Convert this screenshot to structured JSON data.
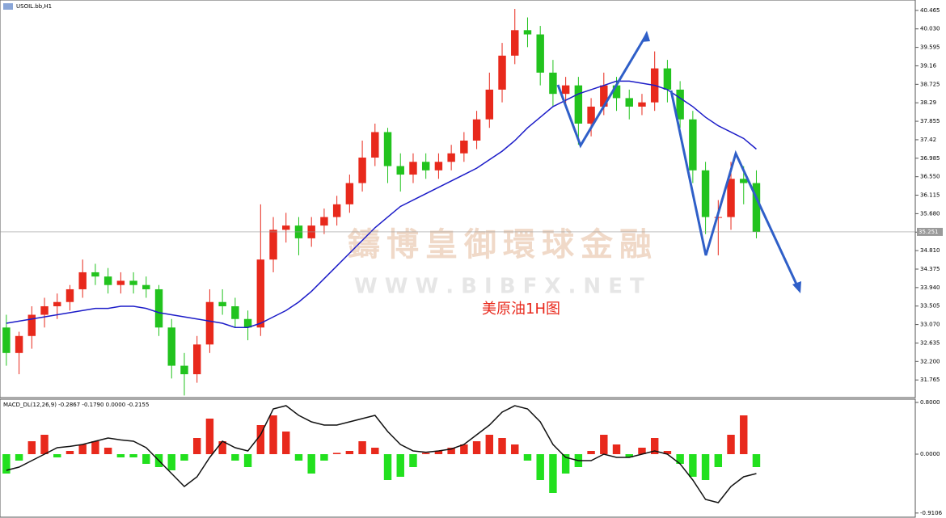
{
  "chart_data": [
    {
      "type": "candlestick",
      "title": "USOIL.bb,H1",
      "annotations": [
        "鑄博皇御環球金融",
        "W W W . B I B F X . N E T",
        "美原油1H图"
      ],
      "up_color": "#e8291c",
      "down_color": "#22c31e",
      "open": [
        33.0,
        32.4,
        32.8,
        33.3,
        33.5,
        33.6,
        33.9,
        34.3,
        34.2,
        34.0,
        34.1,
        34.0,
        33.9,
        33.0,
        32.1,
        31.9,
        32.6,
        33.6,
        33.5,
        33.2,
        33.0,
        34.6,
        35.3,
        35.4,
        35.1,
        35.4,
        35.6,
        35.9,
        36.4,
        37.0,
        37.6,
        36.8,
        36.6,
        36.9,
        36.7,
        36.9,
        37.1,
        37.4,
        37.9,
        38.6,
        39.4,
        40.0,
        39.9,
        39.0,
        38.5,
        38.7,
        37.8,
        38.2,
        38.7,
        38.4,
        38.2,
        38.3,
        39.1,
        38.6,
        37.9,
        36.7,
        35.6,
        35.6,
        36.5,
        36.4
      ],
      "high": [
        33.3,
        32.9,
        33.5,
        33.7,
        33.8,
        34.0,
        34.6,
        34.5,
        34.4,
        34.3,
        34.3,
        34.2,
        34.0,
        33.2,
        32.4,
        32.8,
        33.9,
        33.9,
        33.7,
        33.4,
        35.9,
        35.6,
        35.7,
        35.6,
        35.6,
        35.8,
        36.1,
        36.6,
        37.4,
        37.8,
        37.7,
        37.1,
        37.1,
        37.1,
        37.1,
        37.3,
        37.6,
        38.1,
        39.0,
        39.7,
        40.5,
        40.3,
        40.1,
        39.3,
        38.9,
        38.9,
        38.4,
        39.0,
        38.9,
        38.6,
        38.5,
        39.5,
        39.3,
        38.8,
        38.1,
        36.9,
        36.0,
        36.9,
        36.8,
        36.7
      ],
      "low": [
        32.1,
        31.9,
        32.5,
        33.0,
        33.2,
        33.4,
        33.7,
        34.0,
        33.8,
        33.8,
        33.8,
        33.7,
        32.8,
        31.8,
        31.4,
        31.7,
        32.4,
        33.3,
        33.0,
        32.7,
        32.8,
        34.3,
        35.0,
        34.7,
        34.9,
        35.2,
        35.4,
        35.7,
        36.2,
        36.8,
        36.4,
        36.2,
        36.4,
        36.5,
        36.5,
        36.7,
        36.9,
        37.2,
        37.7,
        38.3,
        39.2,
        39.6,
        38.7,
        38.2,
        38.2,
        37.3,
        37.5,
        38.0,
        38.1,
        37.9,
        38.0,
        38.1,
        38.3,
        37.7,
        36.4,
        35.2,
        34.7,
        35.3,
        35.9,
        35.1
      ],
      "close": [
        32.4,
        32.8,
        33.3,
        33.5,
        33.6,
        33.9,
        34.3,
        34.2,
        34.0,
        34.1,
        34.0,
        33.9,
        33.0,
        32.1,
        31.9,
        32.6,
        33.6,
        33.5,
        33.2,
        33.0,
        34.6,
        35.3,
        35.4,
        35.1,
        35.4,
        35.6,
        35.9,
        36.4,
        37.0,
        37.6,
        36.8,
        36.6,
        36.9,
        36.7,
        36.9,
        37.1,
        37.4,
        37.9,
        38.6,
        39.4,
        40.0,
        39.9,
        39.0,
        38.5,
        38.7,
        37.8,
        38.2,
        38.7,
        38.4,
        38.2,
        38.3,
        39.1,
        38.6,
        37.9,
        36.7,
        35.6,
        35.6,
        36.5,
        36.4,
        35.25
      ],
      "series": [
        {
          "color": "#1c1cc8",
          "values": [
            33.1,
            33.15,
            33.2,
            33.25,
            33.3,
            33.35,
            33.4,
            33.45,
            33.45,
            33.5,
            33.5,
            33.45,
            33.35,
            33.3,
            33.25,
            33.2,
            33.15,
            33.1,
            33.0,
            33.0,
            33.1,
            33.25,
            33.4,
            33.6,
            33.85,
            34.15,
            34.45,
            34.75,
            35.05,
            35.35,
            35.6,
            35.85,
            36.0,
            36.15,
            36.3,
            36.45,
            36.6,
            36.75,
            36.95,
            37.15,
            37.4,
            37.7,
            37.95,
            38.2,
            38.35,
            38.5,
            38.6,
            38.7,
            38.8,
            38.8,
            38.75,
            38.7,
            38.6,
            38.4,
            38.2,
            37.95,
            37.75,
            37.6,
            37.45,
            37.2
          ]
        }
      ],
      "last_price": 35.251,
      "xlim": [
        0,
        72
      ],
      "ylim": [
        31.35,
        40.71
      ],
      "yticks": [
        40.465,
        {
          "value": 40.03,
          "label": "40.030"
        },
        39.595,
        39.16,
        38.725,
        38.29,
        37.855,
        37.42,
        36.985,
        {
          "value": 36.55,
          "label": "36.550"
        },
        36.115,
        {
          "value": 35.68,
          "label": "35.680"
        },
        35.245,
        {
          "value": 34.81,
          "label": "34.810"
        },
        34.375,
        {
          "value": 33.94,
          "label": "33.940"
        },
        33.505,
        {
          "value": 33.07,
          "label": "33.070"
        },
        32.635,
        {
          "value": 32.2,
          "label": "32.200"
        },
        31.765
      ]
    },
    {
      "type": "macd",
      "title": "MACD_DL(12,26,9) -0.2867 -0.1790 0.0000 -0.2155",
      "up_color": "#e8291c",
      "down_color": "#22e01e",
      "values": [
        -0.3,
        -0.1,
        0.2,
        0.3,
        -0.05,
        0.05,
        0.15,
        0.2,
        0.1,
        -0.05,
        -0.05,
        -0.15,
        -0.2,
        -0.25,
        -0.1,
        0.25,
        0.55,
        0.2,
        -0.1,
        -0.2,
        0.45,
        0.6,
        0.35,
        -0.1,
        -0.3,
        -0.1,
        0.02,
        0.05,
        0.2,
        0.1,
        -0.4,
        -0.35,
        -0.2,
        0.02,
        0.05,
        0.1,
        0.15,
        0.2,
        0.3,
        0.25,
        0.15,
        -0.1,
        -0.4,
        -0.6,
        -0.3,
        -0.2,
        0.05,
        0.3,
        0.15,
        -0.05,
        0.1,
        0.25,
        0.05,
        -0.15,
        -0.35,
        -0.4,
        -0.2,
        0.3,
        0.6,
        -0.2
      ],
      "series": [
        {
          "color": "#111111",
          "values": [
            -0.25,
            -0.2,
            -0.1,
            0.0,
            0.1,
            0.12,
            0.15,
            0.2,
            0.25,
            0.22,
            0.2,
            0.1,
            -0.1,
            -0.3,
            -0.5,
            -0.35,
            -0.05,
            0.2,
            0.1,
            0.05,
            0.3,
            0.7,
            0.75,
            0.6,
            0.5,
            0.45,
            0.45,
            0.5,
            0.55,
            0.6,
            0.35,
            0.15,
            0.05,
            0.03,
            0.05,
            0.08,
            0.15,
            0.3,
            0.45,
            0.65,
            0.75,
            0.7,
            0.5,
            0.15,
            -0.05,
            -0.1,
            -0.1,
            0.0,
            -0.05,
            -0.05,
            0.0,
            0.05,
            0.0,
            -0.15,
            -0.4,
            -0.7,
            -0.75,
            -0.5,
            -0.35,
            -0.3
          ]
        }
      ],
      "xlim": [
        0,
        72
      ],
      "ylim": [
        -0.95,
        0.85
      ],
      "yticks": [
        {
          "value": 0.8,
          "label": "0.8000"
        },
        {
          "value": 0,
          "label": "0.0000"
        },
        {
          "value": -0.9106,
          "label": "-0.9106"
        }
      ]
    }
  ]
}
